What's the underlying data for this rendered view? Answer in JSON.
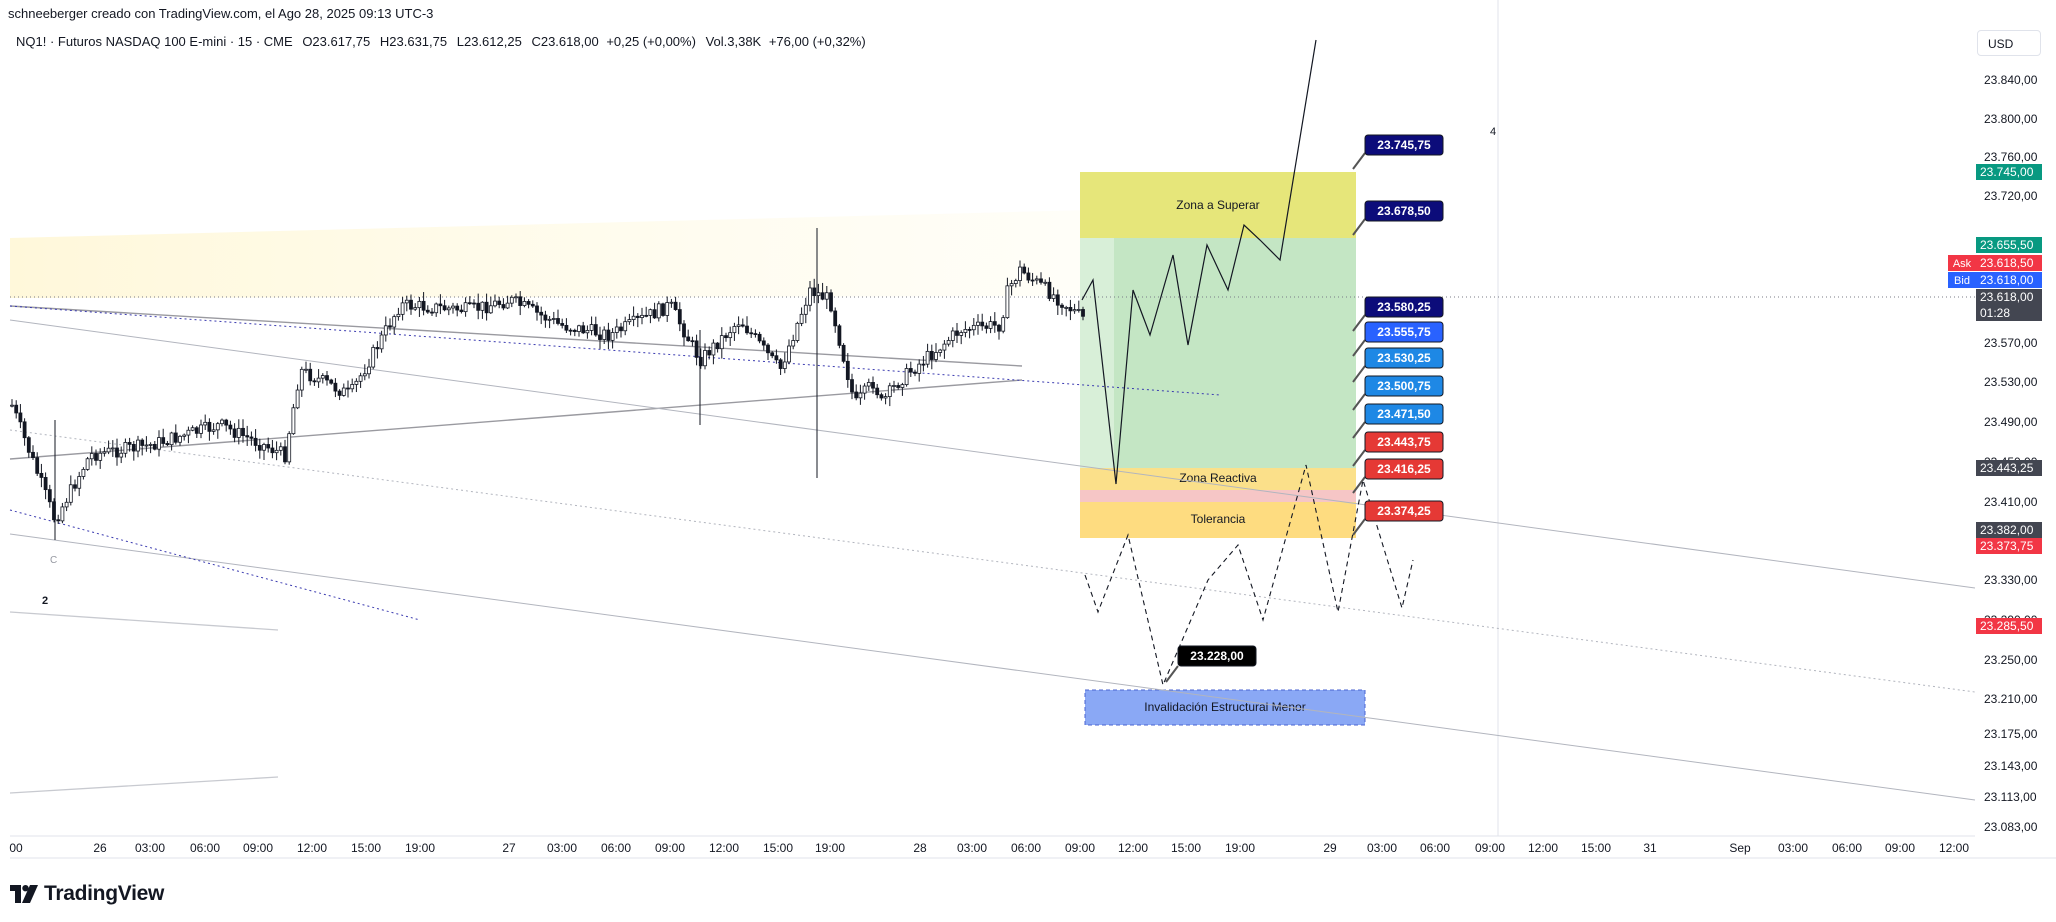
{
  "header": {
    "attribution": "schneeberger creado con TradingView.com, el Ago 28, 2025 09:13 UTC-3",
    "symbol_line": "NQ1! · Futuros NASDAQ 100 E-mini · 15 · CME",
    "open": "O23.617,75",
    "high": "H23.631,75",
    "low": "L23.612,25",
    "close": "C23.618,00",
    "change": "+0,25 (+0,00%)",
    "volume": "Vol.3,38K",
    "vol_change": "+76,00 (+0,32%)"
  },
  "currency": "USD",
  "brand": "TradingView",
  "colors": {
    "candle": "#131722",
    "zone_superar": "#e6e67a",
    "zone_green": "#c4e6c4",
    "zone_reactiva": "#fbe08a",
    "zone_pink": "#f6c6c6",
    "zone_tolerancia": "#fedc80",
    "zone_invalidacion": "#8aa8f5",
    "label_navy": "#0c0c7a",
    "label_blue": "#2962ff",
    "label_cyan": "#1e88e5",
    "label_red": "#e53935",
    "label_black": "#000000"
  },
  "chart_data": {
    "type": "candlestick",
    "price_axis_ticks": [
      "23.840,00",
      "23.800,00",
      "23.760,00",
      "23.720,00",
      "23.570,00",
      "23.530,00",
      "23.490,00",
      "23.450,00",
      "23.410,00",
      "23.330,00",
      "23.290,00",
      "23.250,00",
      "23.210,00",
      "23.175,00",
      "23.143,00",
      "23.113,00",
      "23.083,00"
    ],
    "time_axis_ticks": [
      "00",
      "26",
      "03:00",
      "06:00",
      "09:00",
      "12:00",
      "15:00",
      "19:00",
      "27",
      "03:00",
      "06:00",
      "09:00",
      "12:00",
      "15:00",
      "19:00",
      "28",
      "03:00",
      "06:00",
      "09:00",
      "12:00",
      "15:00",
      "19:00",
      "29",
      "03:00",
      "06:00",
      "09:00",
      "12:00",
      "15:00",
      "31",
      "Sep",
      "03:00",
      "06:00",
      "09:00",
      "12:00"
    ],
    "price_badges": [
      {
        "value": "23.745,00",
        "color": "#089981"
      },
      {
        "value": "23.655,50",
        "color": "#089981"
      },
      {
        "value": "23.618,50",
        "tag": "Ask",
        "color": "#f23645"
      },
      {
        "value": "23.618,00",
        "tag": "Bid",
        "color": "#2962ff"
      },
      {
        "value": "23.618,00",
        "sub": "01:28",
        "color": "#434651"
      },
      {
        "value": "23.443,25",
        "color": "#434651"
      },
      {
        "value": "23.382,00",
        "color": "#434651"
      },
      {
        "value": "23.373,75",
        "color": "#f23645"
      },
      {
        "value": "23.285,50",
        "color": "#f23645"
      }
    ],
    "level_labels": [
      {
        "value": "23.745,75",
        "color": "#0c0c7a"
      },
      {
        "value": "23.678,50",
        "color": "#0c0c7a"
      },
      {
        "value": "23.580,25",
        "color": "#0c0c7a"
      },
      {
        "value": "23.555,75",
        "color": "#2962ff"
      },
      {
        "value": "23.530,25",
        "color": "#1e88e5"
      },
      {
        "value": "23.500,75",
        "color": "#1e88e5"
      },
      {
        "value": "23.471,50",
        "color": "#1e88e5"
      },
      {
        "value": "23.443,75",
        "color": "#e53935"
      },
      {
        "value": "23.416,25",
        "color": "#e53935"
      },
      {
        "value": "23.374,25",
        "color": "#e53935"
      },
      {
        "value": "23.228,00",
        "color": "#000000"
      }
    ],
    "zones": [
      {
        "label": "Zona a Superar"
      },
      {
        "label": "Zona Reactiva"
      },
      {
        "label": "Tolerancia"
      },
      {
        "label": "Invalidación Estructural Menor"
      }
    ],
    "annotations": [
      "4",
      "2",
      "C"
    ]
  }
}
